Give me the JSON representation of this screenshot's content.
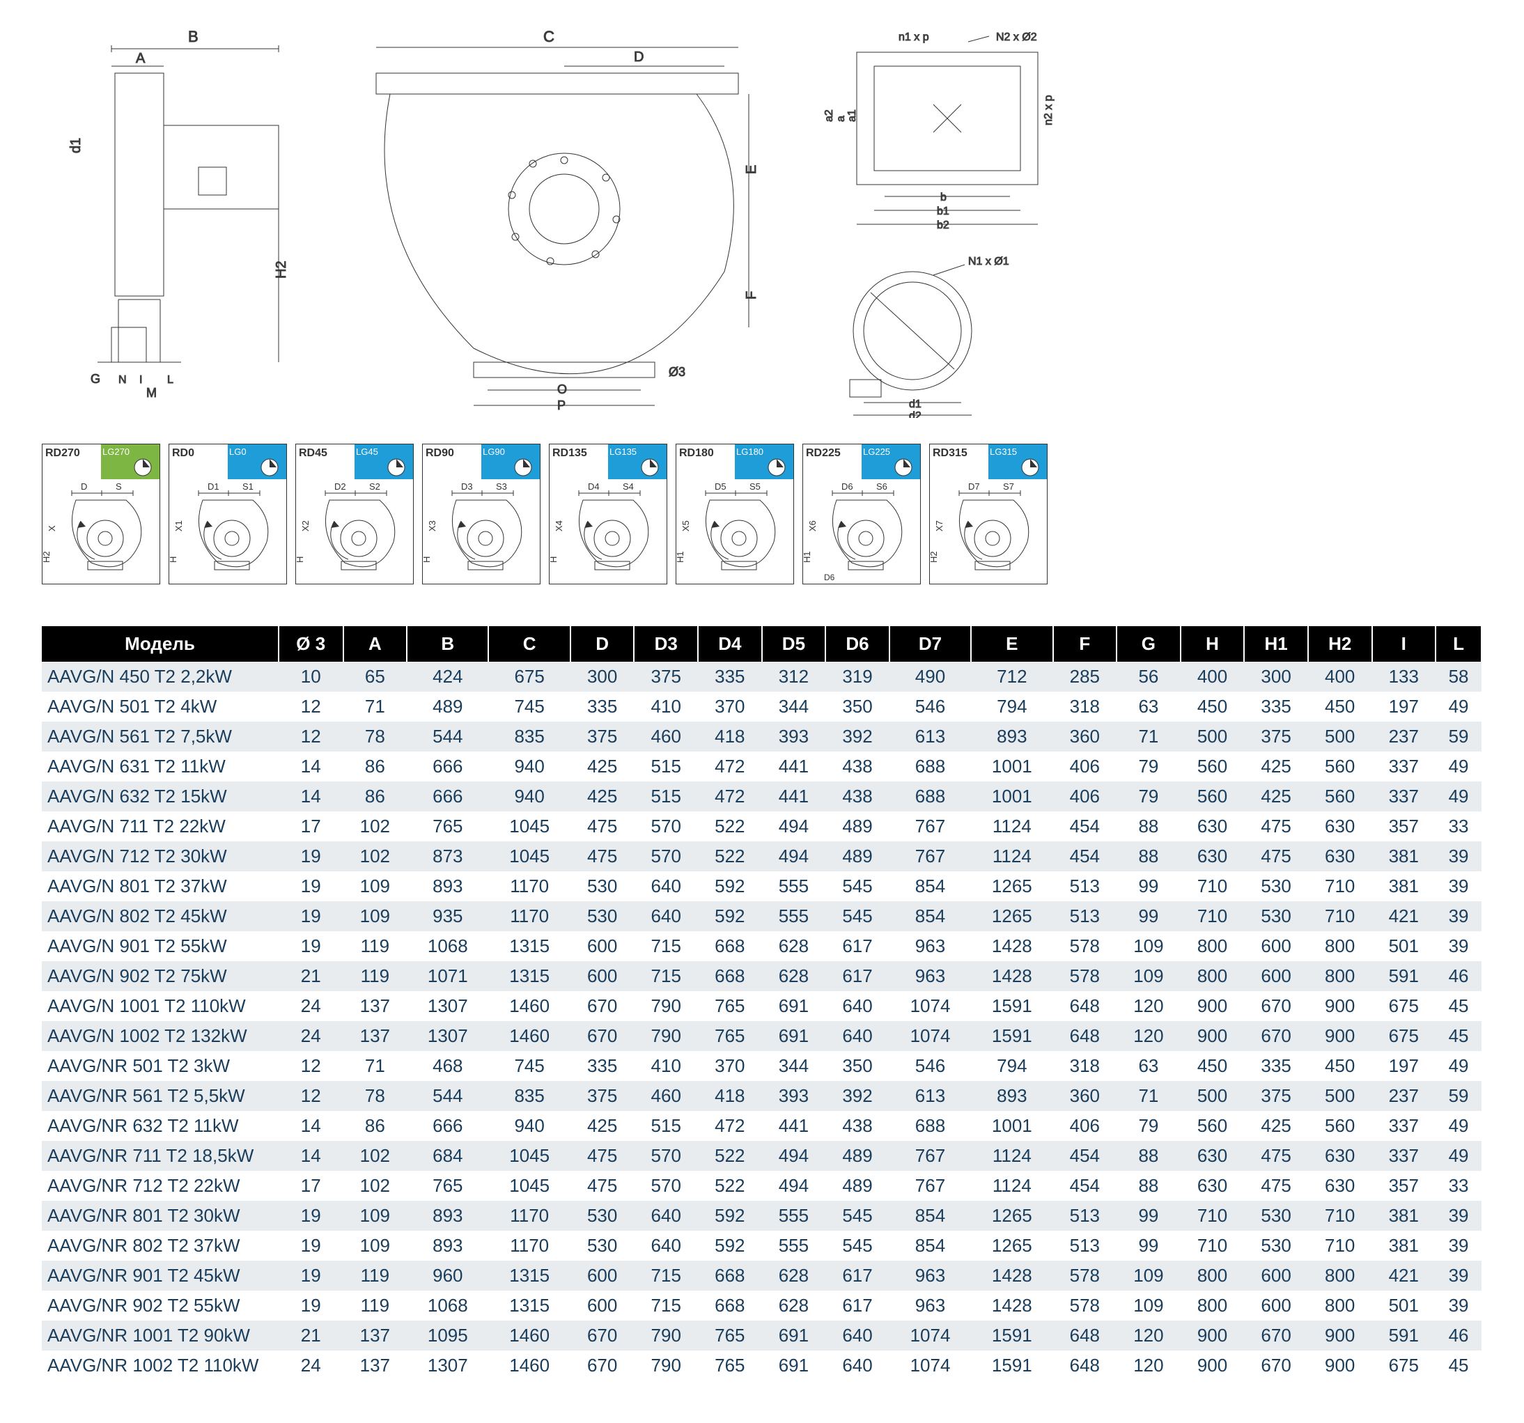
{
  "diagram_labels": {
    "side": {
      "B": "B",
      "A": "A",
      "d1": "d1",
      "H2": "H2",
      "G": "G",
      "M": "M",
      "N": "N",
      "I": "I",
      "L": "L"
    },
    "front": {
      "C": "C",
      "D": "D",
      "E": "E",
      "F": "F",
      "O3": "Ø3",
      "O": "O",
      "P": "P"
    },
    "outlet": {
      "n1xp": "n1 x p",
      "N2xO2": "N2 x Ø2",
      "a2": "a2",
      "a": "a",
      "a1": "a1",
      "n2xp": "n2 x p",
      "b": "b",
      "b1": "b1",
      "b2": "b2"
    },
    "inlet": {
      "N1xO1": "N1 x Ø1",
      "d1": "d1",
      "d2": "d2"
    }
  },
  "rotations": [
    {
      "rd": "RD270",
      "lg": "LG270",
      "color": "green",
      "d": "D",
      "s": "S",
      "x": "X",
      "h": "H2"
    },
    {
      "rd": "RD0",
      "lg": "LG0",
      "color": "blue",
      "d": "D1",
      "s": "S1",
      "x": "X1",
      "h": "H"
    },
    {
      "rd": "RD45",
      "lg": "LG45",
      "color": "blue",
      "d": "D2",
      "s": "S2",
      "x": "X2",
      "h": "H"
    },
    {
      "rd": "RD90",
      "lg": "LG90",
      "color": "blue",
      "d": "D3",
      "s": "S3",
      "x": "X3",
      "h": "H"
    },
    {
      "rd": "RD135",
      "lg": "LG135",
      "color": "blue",
      "d": "D4",
      "s": "S4",
      "x": "X4",
      "h": "H"
    },
    {
      "rd": "RD180",
      "lg": "LG180",
      "color": "blue",
      "d": "D5",
      "s": "S5",
      "x": "X5",
      "h": "H1"
    },
    {
      "rd": "RD225",
      "lg": "LG225",
      "color": "blue",
      "d": "D6",
      "s": "S6",
      "x": "X6",
      "h": "H1",
      "extra": "D6"
    },
    {
      "rd": "RD315",
      "lg": "LG315",
      "color": "blue",
      "d": "D7",
      "s": "S7",
      "x": "X7",
      "h": "H2"
    }
  ],
  "table": {
    "header_bg": "#000000",
    "header_fg": "#ffffff",
    "row_odd": "#e8ecef",
    "row_even": "#ffffff",
    "cell_fg": "#1a3d5c",
    "columns": [
      "Модель",
      "Ø 3",
      "A",
      "B",
      "C",
      "D",
      "D3",
      "D4",
      "D5",
      "D6",
      "D7",
      "E",
      "F",
      "G",
      "H",
      "H1",
      "H2",
      "I",
      "L"
    ],
    "rows": [
      [
        "AAVG/N 450 T2 2,2kW",
        "10",
        "65",
        "424",
        "675",
        "300",
        "375",
        "335",
        "312",
        "319",
        "490",
        "712",
        "285",
        "56",
        "400",
        "300",
        "400",
        "133",
        "58"
      ],
      [
        "AAVG/N 501 T2 4kW",
        "12",
        "71",
        "489",
        "745",
        "335",
        "410",
        "370",
        "344",
        "350",
        "546",
        "794",
        "318",
        "63",
        "450",
        "335",
        "450",
        "197",
        "49"
      ],
      [
        "AAVG/N 561 T2 7,5kW",
        "12",
        "78",
        "544",
        "835",
        "375",
        "460",
        "418",
        "393",
        "392",
        "613",
        "893",
        "360",
        "71",
        "500",
        "375",
        "500",
        "237",
        "59"
      ],
      [
        "AAVG/N 631 T2 11kW",
        "14",
        "86",
        "666",
        "940",
        "425",
        "515",
        "472",
        "441",
        "438",
        "688",
        "1001",
        "406",
        "79",
        "560",
        "425",
        "560",
        "337",
        "49"
      ],
      [
        "AAVG/N 632 T2 15kW",
        "14",
        "86",
        "666",
        "940",
        "425",
        "515",
        "472",
        "441",
        "438",
        "688",
        "1001",
        "406",
        "79",
        "560",
        "425",
        "560",
        "337",
        "49"
      ],
      [
        "AAVG/N 711 T2 22kW",
        "17",
        "102",
        "765",
        "1045",
        "475",
        "570",
        "522",
        "494",
        "489",
        "767",
        "1124",
        "454",
        "88",
        "630",
        "475",
        "630",
        "357",
        "33"
      ],
      [
        "AAVG/N 712 T2 30kW",
        "19",
        "102",
        "873",
        "1045",
        "475",
        "570",
        "522",
        "494",
        "489",
        "767",
        "1124",
        "454",
        "88",
        "630",
        "475",
        "630",
        "381",
        "39"
      ],
      [
        "AAVG/N 801 T2 37kW",
        "19",
        "109",
        "893",
        "1170",
        "530",
        "640",
        "592",
        "555",
        "545",
        "854",
        "1265",
        "513",
        "99",
        "710",
        "530",
        "710",
        "381",
        "39"
      ],
      [
        "AAVG/N 802 T2 45kW",
        "19",
        "109",
        "935",
        "1170",
        "530",
        "640",
        "592",
        "555",
        "545",
        "854",
        "1265",
        "513",
        "99",
        "710",
        "530",
        "710",
        "421",
        "39"
      ],
      [
        "AAVG/N 901 T2 55kW",
        "19",
        "119",
        "1068",
        "1315",
        "600",
        "715",
        "668",
        "628",
        "617",
        "963",
        "1428",
        "578",
        "109",
        "800",
        "600",
        "800",
        "501",
        "39"
      ],
      [
        "AAVG/N 902 T2 75kW",
        "21",
        "119",
        "1071",
        "1315",
        "600",
        "715",
        "668",
        "628",
        "617",
        "963",
        "1428",
        "578",
        "109",
        "800",
        "600",
        "800",
        "591",
        "46"
      ],
      [
        "AAVG/N 1001 T2 110kW",
        "24",
        "137",
        "1307",
        "1460",
        "670",
        "790",
        "765",
        "691",
        "640",
        "1074",
        "1591",
        "648",
        "120",
        "900",
        "670",
        "900",
        "675",
        "45"
      ],
      [
        "AAVG/N 1002 T2 132kW",
        "24",
        "137",
        "1307",
        "1460",
        "670",
        "790",
        "765",
        "691",
        "640",
        "1074",
        "1591",
        "648",
        "120",
        "900",
        "670",
        "900",
        "675",
        "45"
      ],
      [
        "AAVG/NR 501 T2 3kW",
        "12",
        "71",
        "468",
        "745",
        "335",
        "410",
        "370",
        "344",
        "350",
        "546",
        "794",
        "318",
        "63",
        "450",
        "335",
        "450",
        "197",
        "49"
      ],
      [
        "AAVG/NR 561 T2 5,5kW",
        "12",
        "78",
        "544",
        "835",
        "375",
        "460",
        "418",
        "393",
        "392",
        "613",
        "893",
        "360",
        "71",
        "500",
        "375",
        "500",
        "237",
        "59"
      ],
      [
        "AAVG/NR 632 T2 11kW",
        "14",
        "86",
        "666",
        "940",
        "425",
        "515",
        "472",
        "441",
        "438",
        "688",
        "1001",
        "406",
        "79",
        "560",
        "425",
        "560",
        "337",
        "49"
      ],
      [
        "AAVG/NR 711 T2 18,5kW",
        "14",
        "102",
        "684",
        "1045",
        "475",
        "570",
        "522",
        "494",
        "489",
        "767",
        "1124",
        "454",
        "88",
        "630",
        "475",
        "630",
        "337",
        "49"
      ],
      [
        "AAVG/NR 712 T2 22kW",
        "17",
        "102",
        "765",
        "1045",
        "475",
        "570",
        "522",
        "494",
        "489",
        "767",
        "1124",
        "454",
        "88",
        "630",
        "475",
        "630",
        "357",
        "33"
      ],
      [
        "AAVG/NR 801 T2 30kW",
        "19",
        "109",
        "893",
        "1170",
        "530",
        "640",
        "592",
        "555",
        "545",
        "854",
        "1265",
        "513",
        "99",
        "710",
        "530",
        "710",
        "381",
        "39"
      ],
      [
        "AAVG/NR 802 T2 37kW",
        "19",
        "109",
        "893",
        "1170",
        "530",
        "640",
        "592",
        "555",
        "545",
        "854",
        "1265",
        "513",
        "99",
        "710",
        "530",
        "710",
        "381",
        "39"
      ],
      [
        "AAVG/NR 901 T2 45kW",
        "19",
        "119",
        "960",
        "1315",
        "600",
        "715",
        "668",
        "628",
        "617",
        "963",
        "1428",
        "578",
        "109",
        "800",
        "600",
        "800",
        "421",
        "39"
      ],
      [
        "AAVG/NR 902 T2 55kW",
        "19",
        "119",
        "1068",
        "1315",
        "600",
        "715",
        "668",
        "628",
        "617",
        "963",
        "1428",
        "578",
        "109",
        "800",
        "600",
        "800",
        "501",
        "39"
      ],
      [
        "AAVG/NR 1001 T2 90kW",
        "21",
        "137",
        "1095",
        "1460",
        "670",
        "790",
        "765",
        "691",
        "640",
        "1074",
        "1591",
        "648",
        "120",
        "900",
        "670",
        "900",
        "591",
        "46"
      ],
      [
        "AAVG/NR 1002 T2 110kW",
        "24",
        "137",
        "1307",
        "1460",
        "670",
        "790",
        "765",
        "691",
        "640",
        "1074",
        "1591",
        "648",
        "120",
        "900",
        "670",
        "900",
        "675",
        "45"
      ]
    ]
  }
}
